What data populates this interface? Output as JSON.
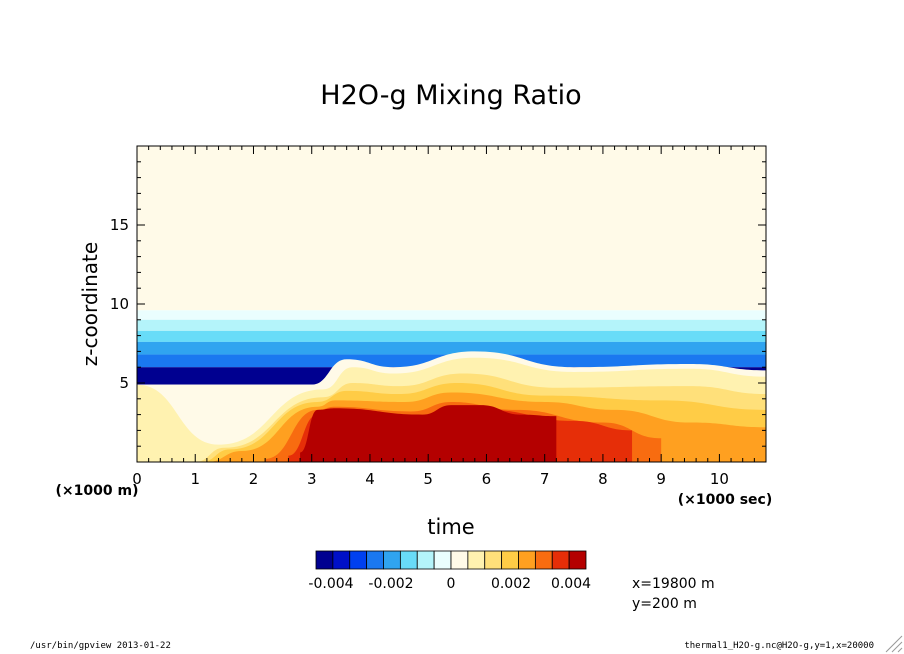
{
  "chart_data": {
    "type": "heatmap",
    "title": "H2O-g Mixing Ratio",
    "xlabel": "time",
    "ylabel": "z-coordinate",
    "x_unit": "(×1000 sec)",
    "y_unit": "(×1000 m)",
    "xlim": [
      0,
      10.8
    ],
    "ylim": [
      0,
      20
    ],
    "x_ticks": [
      "0",
      "1",
      "2",
      "3",
      "4",
      "5",
      "6",
      "7",
      "8",
      "9",
      "10"
    ],
    "x_tick_values": [
      0,
      1,
      2,
      3,
      4,
      5,
      6,
      7,
      8,
      9,
      10
    ],
    "y_ticks": [
      "5",
      "10",
      "15"
    ],
    "y_tick_values": [
      5,
      10,
      15
    ],
    "colorbar": {
      "colors": [
        "#000090",
        "#0010c8",
        "#0040f0",
        "#1a78f0",
        "#30a4f0",
        "#68dcf8",
        "#b4f4fa",
        "#eafefe",
        "#fffae8",
        "#fff2b0",
        "#ffe07a",
        "#ffcc46",
        "#ffa020",
        "#f86c10",
        "#e62e08",
        "#b40000"
      ],
      "range": [
        -0.0045,
        0.0045
      ],
      "tick_labels": [
        "-0.004",
        "-0.002",
        "0",
        "0.002",
        "0.004"
      ],
      "tick_values": [
        -0.004,
        -0.002,
        0,
        0.002,
        0.004
      ]
    },
    "bands": [
      {
        "z_min": 9.6,
        "z_max": 20,
        "value": 0.0001
      },
      {
        "z_min": 9.0,
        "z_max": 9.6,
        "value": -0.0002
      },
      {
        "z_min": 8.3,
        "z_max": 9.0,
        "value": -0.0008
      },
      {
        "z_min": 7.6,
        "z_max": 8.3,
        "value": -0.0014
      },
      {
        "z_min": 6.8,
        "z_max": 7.6,
        "value": -0.0021
      },
      {
        "z_min": 6.0,
        "z_max": 6.8,
        "value": -0.0027
      },
      {
        "z_min": 4.9,
        "z_max": 6.0,
        "value": -0.004
      }
    ],
    "anomaly_layers": [
      {
        "value": 0.0001,
        "top": [
          [
            0,
            4.9
          ],
          [
            3,
            4.9
          ],
          [
            3.6,
            6.5
          ],
          [
            4.4,
            6.0
          ],
          [
            5.8,
            7.0
          ],
          [
            7.5,
            6.0
          ],
          [
            9.5,
            6.2
          ],
          [
            10.8,
            5.8
          ]
        ]
      },
      {
        "value": 0.0006,
        "top": [
          [
            0,
            4.9
          ],
          [
            1.4,
            1.1
          ],
          [
            3.2,
            4.6
          ],
          [
            3.7,
            6.0
          ],
          [
            4.4,
            5.6
          ],
          [
            5.8,
            6.6
          ],
          [
            7.5,
            5.7
          ],
          [
            9.5,
            5.9
          ],
          [
            10.8,
            5.4
          ]
        ]
      },
      {
        "value": 0.0011,
        "top": [
          [
            0.9,
            0
          ],
          [
            1.3,
            0.9
          ],
          [
            3.2,
            4.3
          ],
          [
            3.8,
            5.4
          ],
          [
            4.5,
            5.1
          ],
          [
            5.8,
            6.1
          ],
          [
            7.5,
            5.3
          ],
          [
            9.5,
            5.5
          ],
          [
            10.8,
            5.1
          ]
        ]
      },
      {
        "value": 0.0016,
        "top": [
          [
            1.0,
            0
          ],
          [
            1.5,
            0.9
          ],
          [
            3.2,
            4.1
          ],
          [
            3.7,
            5.0
          ],
          [
            4.5,
            4.8
          ],
          [
            5.6,
            5.6
          ],
          [
            7.2,
            4.7
          ],
          [
            9.5,
            4.8
          ],
          [
            10.8,
            4.3
          ]
        ]
      },
      {
        "value": 0.0021,
        "top": [
          [
            1.1,
            0
          ],
          [
            1.6,
            0.8
          ],
          [
            3.1,
            3.8
          ],
          [
            3.6,
            4.5
          ],
          [
            4.5,
            4.3
          ],
          [
            5.5,
            5.0
          ],
          [
            7.0,
            4.2
          ],
          [
            9.0,
            3.9
          ],
          [
            10.8,
            3.3
          ]
        ]
      },
      {
        "value": 0.0027,
        "top": [
          [
            1.2,
            0
          ],
          [
            1.8,
            0.7
          ],
          [
            3.1,
            3.5
          ],
          [
            3.4,
            3.9
          ],
          [
            4.6,
            3.8
          ],
          [
            5.4,
            4.4
          ],
          [
            7.0,
            3.8
          ],
          [
            8.2,
            3.3
          ],
          [
            9.5,
            2.5
          ],
          [
            10.8,
            2.2
          ]
        ]
      },
      {
        "value": 0.0033,
        "top": [
          [
            2.2,
            0.2
          ],
          [
            3.1,
            3.3
          ],
          [
            3.4,
            3.5
          ],
          [
            4.7,
            3.2
          ],
          [
            5.4,
            3.8
          ],
          [
            6.5,
            3.3
          ],
          [
            8.0,
            2.5
          ],
          [
            9.0,
            1.5
          ]
        ]
      },
      {
        "value": 0.0038,
        "top": [
          [
            2.6,
            0.4
          ],
          [
            3.1,
            3.0
          ],
          [
            3.3,
            3.2
          ],
          [
            4.9,
            2.9
          ],
          [
            5.4,
            3.4
          ],
          [
            6.0,
            3.3
          ],
          [
            7.5,
            2.6
          ],
          [
            8.5,
            2.0
          ]
        ]
      },
      {
        "value": 0.0044,
        "top": [
          [
            2.8,
            0.6
          ],
          [
            3.1,
            3.3
          ],
          [
            3.4,
            3.4
          ],
          [
            4.9,
            3.0
          ],
          [
            5.4,
            3.6
          ],
          [
            5.9,
            3.6
          ],
          [
            6.6,
            3.0
          ],
          [
            7.2,
            2.9
          ]
        ]
      }
    ],
    "annotations": [
      "x=19800 m",
      "y=200 m"
    ]
  },
  "footer": {
    "left": "/usr/bin/gpview  2013-01-22",
    "right": "thermal1_H2O-g.nc@H2O-g,y=1,x=20000"
  }
}
